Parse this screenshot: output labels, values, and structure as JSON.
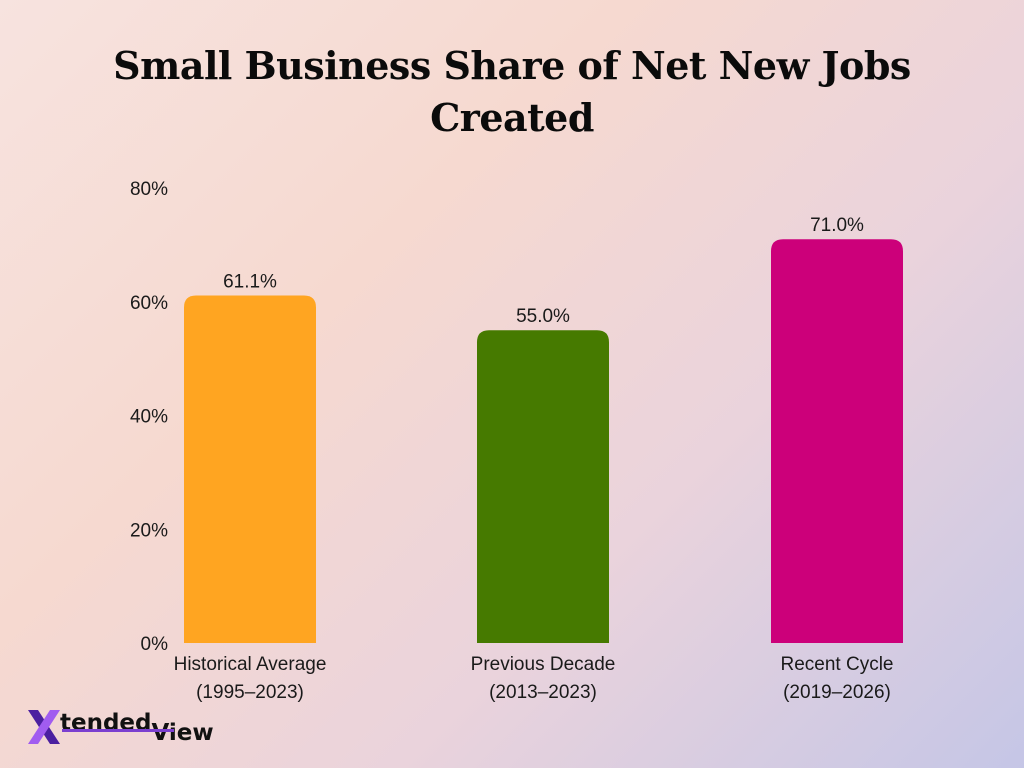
{
  "chart_data": {
    "type": "bar",
    "title_lines": [
      "Small Business Share of Net New Jobs",
      "Created"
    ],
    "categories": [
      [
        "Historical Average",
        "(1995–2023)"
      ],
      [
        "Previous Decade",
        "(2013–2023)"
      ],
      [
        "Recent Cycle",
        "(2019–2026)"
      ]
    ],
    "values": [
      61.1,
      55.0,
      71.0
    ],
    "value_labels": [
      "61.1%",
      "55.0%",
      "71.0%"
    ],
    "colors": [
      "#FFA521",
      "#467A00",
      "#CC007A"
    ],
    "ylim": [
      0,
      80
    ],
    "yticks": [
      0,
      20,
      40,
      60,
      80
    ],
    "ytick_labels": [
      "0%",
      "20%",
      "40%",
      "60%",
      "80%"
    ],
    "grid": false,
    "legend": "none"
  },
  "logo": {
    "text_part1": "tended",
    "text_part2": "View",
    "colors": {
      "x_left": "#4b1fa0",
      "x_right": "#a15cf0",
      "underline": "#7b3fd0"
    }
  }
}
